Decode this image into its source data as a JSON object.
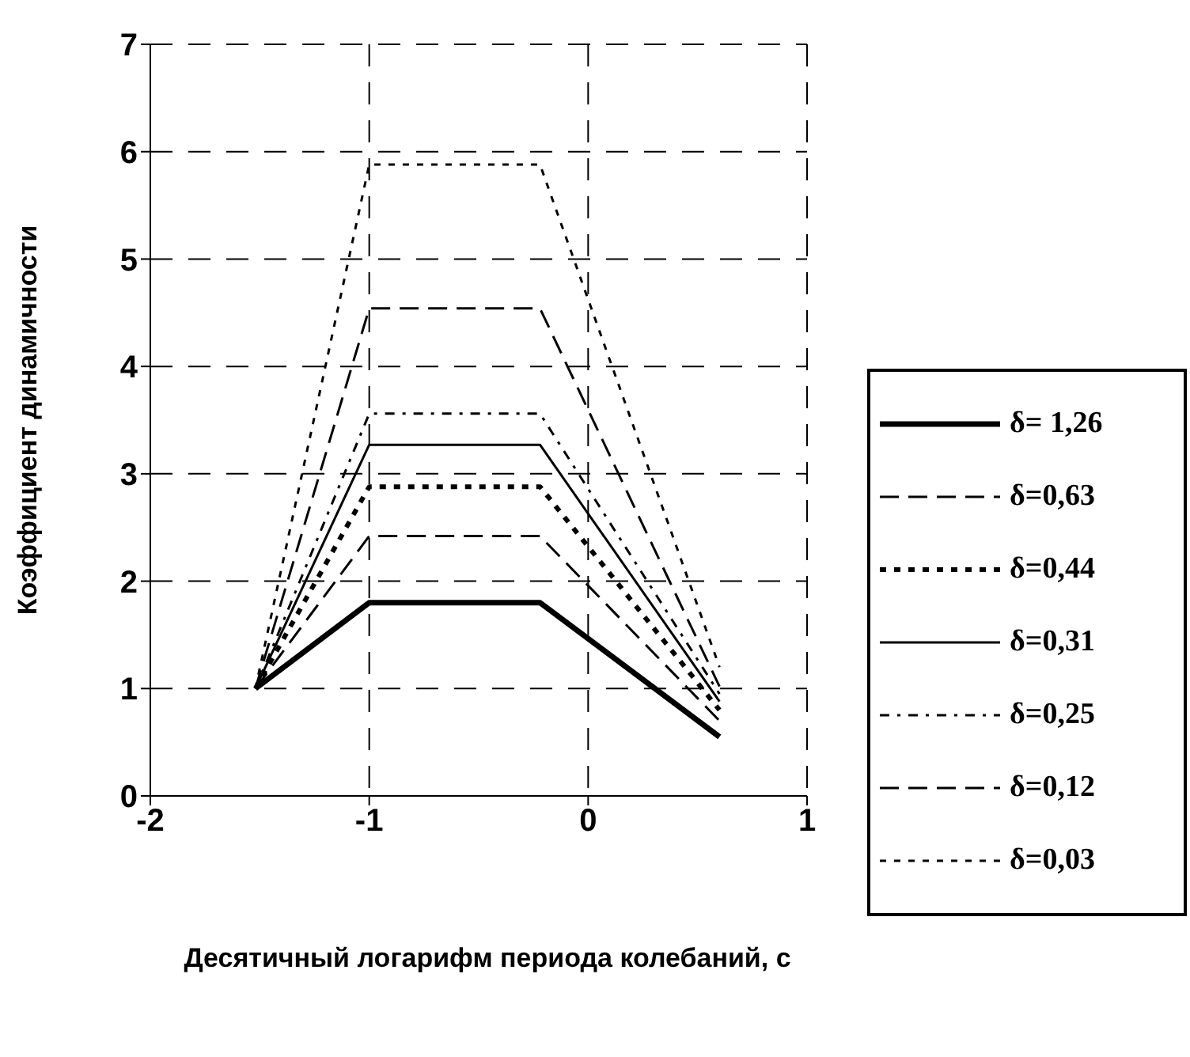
{
  "chart_data": {
    "type": "line",
    "xlabel": "Десятичный логарифм периода колебаний, с",
    "ylabel": "Коэффициент динамичности",
    "x": [
      -1.52,
      -1,
      -0.22,
      0.6
    ],
    "series": [
      {
        "name": "δ= 1,26",
        "color": "#000000",
        "line_style": "solid",
        "values": [
          1,
          1.8,
          1.8,
          0.55
        ]
      },
      {
        "name": "δ=0,63",
        "color": "#000000",
        "line_style": "dashed",
        "values": [
          1,
          2.42,
          2.42,
          0.7
        ]
      },
      {
        "name": "δ=0,44",
        "color": "#000000",
        "line_style": "dotted",
        "values": [
          1,
          2.88,
          2.88,
          0.8
        ]
      },
      {
        "name": "δ=0,31",
        "color": "#000000",
        "line_style": "solid",
        "values": [
          1,
          3.27,
          3.27,
          0.88
        ]
      },
      {
        "name": "δ=0,25",
        "color": "#000000",
        "line_style": "dashed",
        "values": [
          1,
          3.56,
          3.56,
          0.95
        ]
      },
      {
        "name": "δ=0,12",
        "color": "#000000",
        "line_style": "dashed",
        "values": [
          1,
          4.54,
          4.54,
          1.02
        ]
      },
      {
        "name": "δ=0,03",
        "color": "#000000",
        "line_style": "dotted",
        "values": [
          1,
          5.88,
          5.88,
          1.2
        ]
      }
    ],
    "xlim": [
      -2,
      1
    ],
    "xticks": [
      -2,
      -1,
      0,
      1
    ],
    "ylim": [
      0,
      7
    ],
    "yticks": [
      0,
      1,
      2,
      3,
      4,
      5,
      6,
      7
    ],
    "grid": true,
    "legend": "right",
    "marker": "none"
  }
}
